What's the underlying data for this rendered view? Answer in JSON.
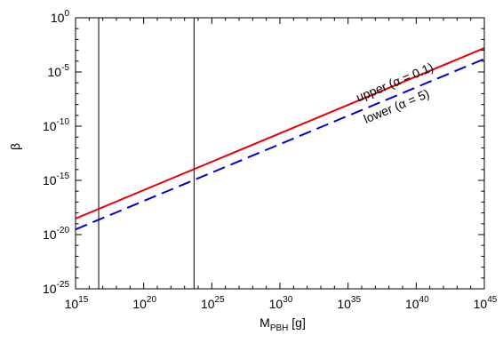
{
  "chart_data": {
    "type": "line",
    "xlabel": {
      "main": "M",
      "sub": "PBH",
      "unit": " [g]"
    },
    "ylabel": "β",
    "x_scale": "log",
    "y_scale": "log",
    "xlim": [
      1000000000000000.0,
      1e+45
    ],
    "ylim": [
      1e-25,
      1
    ],
    "x_ticks": [
      {
        "base": "10",
        "exp": "15",
        "value": 1000000000000000.0
      },
      {
        "base": "10",
        "exp": "20",
        "value": 1e+20
      },
      {
        "base": "10",
        "exp": "25",
        "value": 1e+25
      },
      {
        "base": "10",
        "exp": "30",
        "value": 1e+30
      },
      {
        "base": "10",
        "exp": "35",
        "value": 1e+35
      },
      {
        "base": "10",
        "exp": "40",
        "value": 1e+40
      },
      {
        "base": "10",
        "exp": "45",
        "value": 1e+45
      }
    ],
    "y_ticks": [
      {
        "base": "10",
        "exp": "0",
        "value": 1
      },
      {
        "base": "10",
        "exp": "-5",
        "value": 1e-05
      },
      {
        "base": "10",
        "exp": "-10",
        "value": 1e-10
      },
      {
        "base": "10",
        "exp": "-15",
        "value": 1e-15
      },
      {
        "base": "10",
        "exp": "-20",
        "value": 1e-20
      },
      {
        "base": "10",
        "exp": "-25",
        "value": 1e-25
      }
    ],
    "vertical_lines": [
      {
        "x": 5e+16,
        "color": "#000000"
      },
      {
        "x": 5e+23,
        "color": "#000000"
      }
    ],
    "series": [
      {
        "name": "upper (α = 0.1)",
        "color": "#e8000b",
        "dash": "solid",
        "x": [
          1000000000000000.0,
          1e+45
        ],
        "y": [
          3e-19,
          0.0016
        ]
      },
      {
        "name": "lower (α = 5)",
        "color": "#0000cc",
        "dash": "dashed",
        "x": [
          1000000000000000.0,
          1e+45
        ],
        "y": [
          3e-20,
          0.00016
        ]
      }
    ],
    "grid": false,
    "legend": "inline labels along lines at upper right"
  }
}
